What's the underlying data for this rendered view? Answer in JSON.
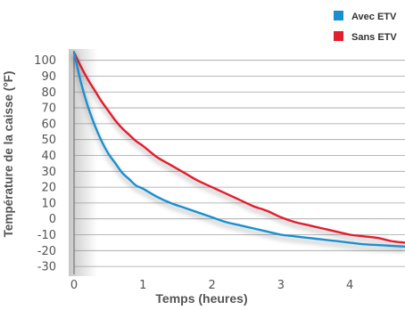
{
  "chart_data": {
    "type": "line",
    "xlabel": "Temps (heures)",
    "ylabel": "Température de la caisse (°F)",
    "xlim": [
      0,
      4.8
    ],
    "ylim": [
      -35,
      106
    ],
    "x_ticks": [
      "0",
      "1",
      "2",
      "3",
      "4"
    ],
    "y_ticks": [
      "100",
      "90",
      "80",
      "70",
      "60",
      "50",
      "40",
      "30",
      "20",
      "10",
      "0",
      "-10",
      "-20",
      "-30"
    ],
    "grid": true,
    "legend_position": "top-right",
    "series": [
      {
        "name": "Avec ETV",
        "color": "#1a8fd0",
        "x": [
          0.0,
          0.1,
          0.2,
          0.3,
          0.4,
          0.5,
          0.6,
          0.7,
          0.8,
          0.9,
          1.0,
          1.2,
          1.4,
          1.6,
          1.8,
          2.0,
          2.2,
          2.4,
          2.6,
          2.8,
          3.0,
          3.2,
          3.4,
          3.6,
          3.8,
          4.0,
          4.2,
          4.4,
          4.6,
          4.8
        ],
        "values": [
          105,
          86,
          71,
          59,
          49,
          41,
          35,
          29,
          25,
          21,
          19,
          14,
          10,
          7,
          4,
          1,
          -2,
          -4,
          -6,
          -8,
          -10,
          -11,
          -12,
          -13,
          -14,
          -15,
          -16,
          -16.5,
          -17,
          -17.5
        ]
      },
      {
        "name": "Sans ETV",
        "color": "#e31e2d",
        "x": [
          0.0,
          0.1,
          0.2,
          0.3,
          0.4,
          0.5,
          0.6,
          0.7,
          0.8,
          0.9,
          1.0,
          1.2,
          1.4,
          1.6,
          1.8,
          2.0,
          2.2,
          2.4,
          2.6,
          2.8,
          3.0,
          3.2,
          3.4,
          3.6,
          3.8,
          4.0,
          4.2,
          4.4,
          4.6,
          4.8
        ],
        "values": [
          105,
          96,
          88,
          81,
          74,
          68,
          62,
          57,
          53,
          49,
          46,
          39,
          34,
          29,
          24,
          20,
          16,
          12,
          8,
          5,
          1,
          -2,
          -4,
          -6,
          -8,
          -10,
          -11,
          -12,
          -14,
          -15
        ]
      }
    ]
  }
}
